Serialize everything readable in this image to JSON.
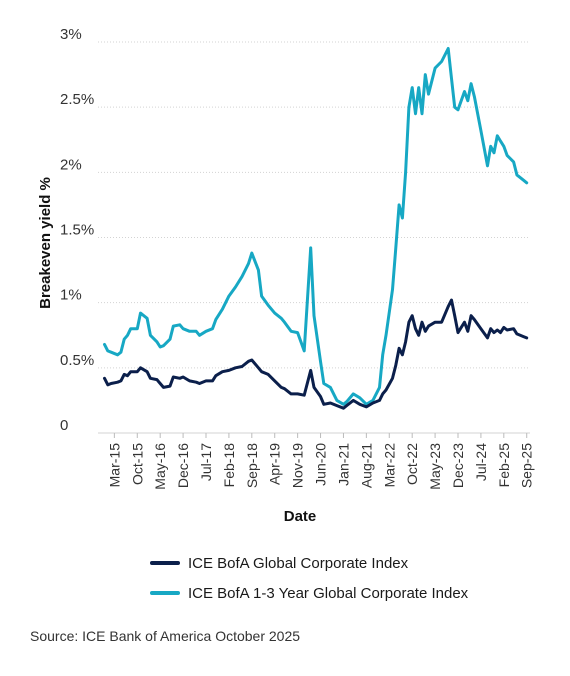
{
  "chart_data": {
    "type": "line",
    "title": "",
    "xlabel": "Date",
    "ylabel": "Breakeven yield %",
    "ylim": [
      0,
      3
    ],
    "y_ticks": [
      0,
      0.5,
      1,
      1.5,
      2,
      2.5,
      3
    ],
    "y_tick_labels": [
      "0",
      "0.5%",
      "1%",
      "1.5%",
      "2%",
      "2.5%",
      "3%"
    ],
    "x_range": [
      "2014-10",
      "2025-10"
    ],
    "x_ticks": [
      {
        "date": "2015-03",
        "label": "Mar-15"
      },
      {
        "date": "2015-10",
        "label": "Oct-15"
      },
      {
        "date": "2016-05",
        "label": "May-16"
      },
      {
        "date": "2016-12",
        "label": "Dec-16"
      },
      {
        "date": "2017-07",
        "label": "Jul-17"
      },
      {
        "date": "2018-02",
        "label": "Feb-18"
      },
      {
        "date": "2018-09",
        "label": "Sep-18"
      },
      {
        "date": "2019-04",
        "label": "Apr-19"
      },
      {
        "date": "2019-11",
        "label": "Nov-19"
      },
      {
        "date": "2020-06",
        "label": "Jun-20"
      },
      {
        "date": "2021-01",
        "label": "Jan-21"
      },
      {
        "date": "2021-08",
        "label": "Aug-21"
      },
      {
        "date": "2022-03",
        "label": "Mar-22"
      },
      {
        "date": "2022-10",
        "label": "Oct-22"
      },
      {
        "date": "2023-05",
        "label": "May-23"
      },
      {
        "date": "2023-12",
        "label": "Dec-23"
      },
      {
        "date": "2024-07",
        "label": "Jul-24"
      },
      {
        "date": "2025-02",
        "label": "Feb-25"
      },
      {
        "date": "2025-09",
        "label": "Sep-25"
      }
    ],
    "grid": "horizontal dotted",
    "legend_position": "bottom",
    "series": [
      {
        "name": "ICE BofA Global Corporate Index",
        "color": "#0b1f4b",
        "points": [
          [
            "2014-12",
            0.42
          ],
          [
            "2015-01",
            0.37
          ],
          [
            "2015-02",
            0.38
          ],
          [
            "2015-04",
            0.39
          ],
          [
            "2015-05",
            0.4
          ],
          [
            "2015-06",
            0.45
          ],
          [
            "2015-07",
            0.44
          ],
          [
            "2015-08",
            0.47
          ],
          [
            "2015-10",
            0.47
          ],
          [
            "2015-11",
            0.5
          ],
          [
            "2016-01",
            0.47
          ],
          [
            "2016-02",
            0.42
          ],
          [
            "2016-04",
            0.41
          ],
          [
            "2016-05",
            0.38
          ],
          [
            "2016-06",
            0.35
          ],
          [
            "2016-08",
            0.36
          ],
          [
            "2016-09",
            0.43
          ],
          [
            "2016-11",
            0.42
          ],
          [
            "2016-12",
            0.43
          ],
          [
            "2017-02",
            0.4
          ],
          [
            "2017-04",
            0.39
          ],
          [
            "2017-05",
            0.38
          ],
          [
            "2017-07",
            0.4
          ],
          [
            "2017-09",
            0.4
          ],
          [
            "2017-10",
            0.44
          ],
          [
            "2017-12",
            0.47
          ],
          [
            "2018-02",
            0.48
          ],
          [
            "2018-04",
            0.5
          ],
          [
            "2018-06",
            0.51
          ],
          [
            "2018-08",
            0.55
          ],
          [
            "2018-09",
            0.56
          ],
          [
            "2018-11",
            0.5
          ],
          [
            "2018-12",
            0.47
          ],
          [
            "2019-02",
            0.45
          ],
          [
            "2019-04",
            0.4
          ],
          [
            "2019-06",
            0.35
          ],
          [
            "2019-07",
            0.34
          ],
          [
            "2019-09",
            0.3
          ],
          [
            "2019-11",
            0.3
          ],
          [
            "2020-01",
            0.29
          ],
          [
            "2020-03",
            0.48
          ],
          [
            "2020-04",
            0.35
          ],
          [
            "2020-06",
            0.28
          ],
          [
            "2020-07",
            0.22
          ],
          [
            "2020-09",
            0.23
          ],
          [
            "2020-11",
            0.21
          ],
          [
            "2021-01",
            0.19
          ],
          [
            "2021-02",
            0.21
          ],
          [
            "2021-04",
            0.25
          ],
          [
            "2021-06",
            0.22
          ],
          [
            "2021-08",
            0.2
          ],
          [
            "2021-10",
            0.23
          ],
          [
            "2021-12",
            0.25
          ],
          [
            "2022-01",
            0.3
          ],
          [
            "2022-02",
            0.33
          ],
          [
            "2022-04",
            0.42
          ],
          [
            "2022-05",
            0.52
          ],
          [
            "2022-06",
            0.65
          ],
          [
            "2022-07",
            0.6
          ],
          [
            "2022-08",
            0.7
          ],
          [
            "2022-09",
            0.85
          ],
          [
            "2022-10",
            0.9
          ],
          [
            "2022-11",
            0.8
          ],
          [
            "2022-12",
            0.75
          ],
          [
            "2023-01",
            0.85
          ],
          [
            "2023-02",
            0.78
          ],
          [
            "2023-03",
            0.82
          ],
          [
            "2023-05",
            0.85
          ],
          [
            "2023-07",
            0.85
          ],
          [
            "2023-09",
            0.97
          ],
          [
            "2023-10",
            1.02
          ],
          [
            "2023-11",
            0.9
          ],
          [
            "2023-12",
            0.77
          ],
          [
            "2024-02",
            0.85
          ],
          [
            "2024-03",
            0.78
          ],
          [
            "2024-04",
            0.9
          ],
          [
            "2024-05",
            0.87
          ],
          [
            "2024-07",
            0.8
          ],
          [
            "2024-09",
            0.73
          ],
          [
            "2024-10",
            0.8
          ],
          [
            "2024-11",
            0.77
          ],
          [
            "2024-12",
            0.79
          ],
          [
            "2025-01",
            0.77
          ],
          [
            "2025-02",
            0.81
          ],
          [
            "2025-03",
            0.79
          ],
          [
            "2025-05",
            0.8
          ],
          [
            "2025-06",
            0.76
          ],
          [
            "2025-08",
            0.74
          ],
          [
            "2025-09",
            0.73
          ]
        ]
      },
      {
        "name": "ICE BofA 1-3 Year Global Corporate Index",
        "color": "#17a8c4",
        "points": [
          [
            "2014-12",
            0.68
          ],
          [
            "2015-01",
            0.63
          ],
          [
            "2015-02",
            0.62
          ],
          [
            "2015-04",
            0.6
          ],
          [
            "2015-05",
            0.62
          ],
          [
            "2015-06",
            0.72
          ],
          [
            "2015-07",
            0.75
          ],
          [
            "2015-08",
            0.8
          ],
          [
            "2015-10",
            0.8
          ],
          [
            "2015-11",
            0.92
          ],
          [
            "2016-01",
            0.88
          ],
          [
            "2016-02",
            0.75
          ],
          [
            "2016-04",
            0.7
          ],
          [
            "2016-05",
            0.66
          ],
          [
            "2016-06",
            0.67
          ],
          [
            "2016-08",
            0.72
          ],
          [
            "2016-09",
            0.82
          ],
          [
            "2016-11",
            0.83
          ],
          [
            "2016-12",
            0.8
          ],
          [
            "2017-02",
            0.78
          ],
          [
            "2017-04",
            0.78
          ],
          [
            "2017-05",
            0.75
          ],
          [
            "2017-07",
            0.78
          ],
          [
            "2017-09",
            0.8
          ],
          [
            "2017-10",
            0.87
          ],
          [
            "2017-12",
            0.95
          ],
          [
            "2018-02",
            1.05
          ],
          [
            "2018-04",
            1.12
          ],
          [
            "2018-06",
            1.2
          ],
          [
            "2018-08",
            1.3
          ],
          [
            "2018-09",
            1.38
          ],
          [
            "2018-11",
            1.25
          ],
          [
            "2018-12",
            1.05
          ],
          [
            "2019-02",
            0.98
          ],
          [
            "2019-04",
            0.92
          ],
          [
            "2019-06",
            0.88
          ],
          [
            "2019-07",
            0.85
          ],
          [
            "2019-09",
            0.78
          ],
          [
            "2019-11",
            0.77
          ],
          [
            "2020-01",
            0.63
          ],
          [
            "2020-03",
            1.42
          ],
          [
            "2020-04",
            0.9
          ],
          [
            "2020-06",
            0.55
          ],
          [
            "2020-07",
            0.38
          ],
          [
            "2020-09",
            0.35
          ],
          [
            "2020-11",
            0.25
          ],
          [
            "2021-01",
            0.22
          ],
          [
            "2021-02",
            0.24
          ],
          [
            "2021-04",
            0.3
          ],
          [
            "2021-06",
            0.27
          ],
          [
            "2021-08",
            0.22
          ],
          [
            "2021-10",
            0.25
          ],
          [
            "2021-12",
            0.35
          ],
          [
            "2022-01",
            0.6
          ],
          [
            "2022-02",
            0.75
          ],
          [
            "2022-04",
            1.1
          ],
          [
            "2022-05",
            1.42
          ],
          [
            "2022-06",
            1.75
          ],
          [
            "2022-07",
            1.65
          ],
          [
            "2022-08",
            2.0
          ],
          [
            "2022-09",
            2.5
          ],
          [
            "2022-10",
            2.65
          ],
          [
            "2022-11",
            2.45
          ],
          [
            "2022-12",
            2.65
          ],
          [
            "2023-01",
            2.45
          ],
          [
            "2023-02",
            2.75
          ],
          [
            "2023-03",
            2.6
          ],
          [
            "2023-05",
            2.8
          ],
          [
            "2023-07",
            2.85
          ],
          [
            "2023-09",
            2.95
          ],
          [
            "2023-10",
            2.72
          ],
          [
            "2023-11",
            2.5
          ],
          [
            "2023-12",
            2.48
          ],
          [
            "2024-02",
            2.62
          ],
          [
            "2024-03",
            2.55
          ],
          [
            "2024-04",
            2.68
          ],
          [
            "2024-05",
            2.58
          ],
          [
            "2024-07",
            2.32
          ],
          [
            "2024-09",
            2.05
          ],
          [
            "2024-10",
            2.2
          ],
          [
            "2024-11",
            2.15
          ],
          [
            "2024-12",
            2.28
          ],
          [
            "2025-01",
            2.24
          ],
          [
            "2025-02",
            2.2
          ],
          [
            "2025-03",
            2.13
          ],
          [
            "2025-05",
            2.08
          ],
          [
            "2025-06",
            1.98
          ],
          [
            "2025-08",
            1.94
          ],
          [
            "2025-09",
            1.92
          ]
        ]
      }
    ]
  },
  "legend": {
    "item1": "ICE BofA Global Corporate Index",
    "item2": "ICE BofA 1-3 Year Global Corporate Index"
  },
  "source": "Source: ICE Bank of America October 2025"
}
